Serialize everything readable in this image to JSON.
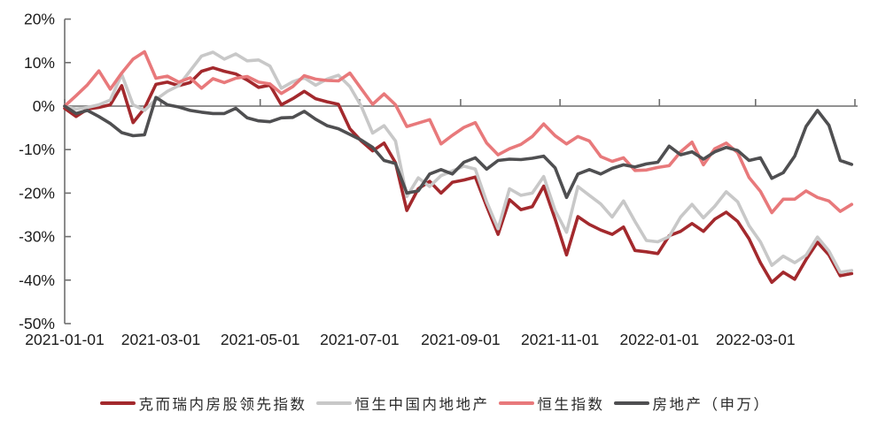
{
  "chart_data": {
    "type": "line",
    "title": "",
    "xlabel": "",
    "ylabel": "",
    "y_unit": "%",
    "ylim": [
      -50,
      20
    ],
    "grid": false,
    "legend_position": "bottom",
    "axis_color": "#6f6f6f",
    "text_color": "#1c1c1c",
    "y_ticks": [
      {
        "value": 20,
        "label": "20%"
      },
      {
        "value": 10,
        "label": "10%"
      },
      {
        "value": 0,
        "label": "0%"
      },
      {
        "value": -10,
        "label": "-10%"
      },
      {
        "value": -20,
        "label": "-20%"
      },
      {
        "value": -30,
        "label": "-30%"
      },
      {
        "value": -40,
        "label": "-40%"
      },
      {
        "value": -50,
        "label": "-50%"
      }
    ],
    "x_ticks": [
      {
        "label": "2021-01-01",
        "day": 0
      },
      {
        "label": "2021-03-01",
        "day": 59
      },
      {
        "label": "2021-05-01",
        "day": 120
      },
      {
        "label": "2021-07-01",
        "day": 181
      },
      {
        "label": "2021-09-01",
        "day": 243
      },
      {
        "label": "2021-11-01",
        "day": 304
      },
      {
        "label": "2022-01-01",
        "day": 365
      },
      {
        "label": "2022-03-01",
        "day": 424
      },
      {
        "label": "",
        "day": 485
      }
    ],
    "x": [
      "2021-01-01",
      "2021-01-08",
      "2021-01-15",
      "2021-01-22",
      "2021-01-29",
      "2021-02-05",
      "2021-02-12",
      "2021-02-19",
      "2021-02-26",
      "2021-03-05",
      "2021-03-12",
      "2021-03-19",
      "2021-03-26",
      "2021-04-02",
      "2021-04-09",
      "2021-04-16",
      "2021-04-23",
      "2021-04-30",
      "2021-05-07",
      "2021-05-14",
      "2021-05-21",
      "2021-05-28",
      "2021-06-04",
      "2021-06-11",
      "2021-06-18",
      "2021-06-25",
      "2021-07-02",
      "2021-07-09",
      "2021-07-16",
      "2021-07-23",
      "2021-07-30",
      "2021-08-06",
      "2021-08-13",
      "2021-08-20",
      "2021-08-27",
      "2021-09-03",
      "2021-09-10",
      "2021-09-17",
      "2021-09-24",
      "2021-10-01",
      "2021-10-08",
      "2021-10-15",
      "2021-10-22",
      "2021-10-29",
      "2021-11-05",
      "2021-11-12",
      "2021-11-19",
      "2021-11-26",
      "2021-12-03",
      "2021-12-10",
      "2021-12-17",
      "2021-12-24",
      "2021-12-31",
      "2022-01-07",
      "2022-01-14",
      "2022-01-21",
      "2022-01-28",
      "2022-02-04",
      "2022-02-11",
      "2022-02-18",
      "2022-02-25",
      "2022-03-04",
      "2022-03-11",
      "2022-03-18",
      "2022-03-25",
      "2022-04-01",
      "2022-04-08",
      "2022-04-15",
      "2022-04-22",
      "2022-04-29"
    ],
    "series": [
      {
        "name": "克而瑞内房股领先指数",
        "color": "#a3292d",
        "values": [
          -0.5,
          -2.4,
          -0.7,
          -0.3,
          0.3,
          4.7,
          -3.8,
          -0.5,
          5.0,
          5.5,
          4.7,
          5.4,
          8.0,
          8.8,
          8.0,
          7.4,
          6.0,
          4.3,
          4.8,
          0.3,
          1.7,
          3.4,
          1.7,
          1.0,
          0.4,
          -5.2,
          -8.0,
          -10.3,
          -8.5,
          -13.0,
          -24.0,
          -19.0,
          -17.3,
          -20.0,
          -17.5,
          -17.0,
          -16.3,
          -23.0,
          -29.5,
          -21.5,
          -23.8,
          -23.1,
          -18.4,
          -26.0,
          -34.2,
          -25.4,
          -27.2,
          -28.5,
          -29.5,
          -27.8,
          -33.2,
          -33.5,
          -33.9,
          -29.8,
          -28.8,
          -27.0,
          -28.8,
          -26.0,
          -24.4,
          -26.5,
          -30.5,
          -36.0,
          -40.5,
          -38.2,
          -39.8,
          -35.3,
          -31.3,
          -34.2,
          -39.0,
          -38.5
        ]
      },
      {
        "name": "恒生中国内地地产",
        "color": "#c8c8c8",
        "values": [
          0.0,
          -0.7,
          -0.3,
          0.3,
          1.4,
          7.3,
          0.3,
          -1.0,
          1.5,
          3.4,
          4.7,
          8.1,
          11.5,
          12.4,
          10.8,
          12.0,
          10.4,
          10.6,
          9.2,
          4.1,
          5.6,
          6.5,
          4.8,
          6.2,
          7.1,
          4.5,
          0.0,
          -6.2,
          -4.5,
          -8.0,
          -20.8,
          -16.5,
          -18.5,
          -16.0,
          -14.9,
          -13.8,
          -14.5,
          -22.0,
          -28.2,
          -19.0,
          -20.5,
          -20.0,
          -16.2,
          -24.0,
          -29.0,
          -18.5,
          -20.5,
          -22.5,
          -25.5,
          -21.8,
          -26.5,
          -30.9,
          -31.2,
          -30.0,
          -25.5,
          -22.6,
          -25.7,
          -23.0,
          -19.7,
          -22.0,
          -27.5,
          -31.2,
          -36.6,
          -34.5,
          -36.0,
          -34.3,
          -30.1,
          -33.3,
          -38.2,
          -37.8
        ]
      },
      {
        "name": "恒生指数",
        "color": "#e8797b",
        "values": [
          0.0,
          2.4,
          4.9,
          8.1,
          3.9,
          7.6,
          10.8,
          12.5,
          6.4,
          6.9,
          5.5,
          6.5,
          4.1,
          6.3,
          5.4,
          6.4,
          6.8,
          5.5,
          5.1,
          2.9,
          4.5,
          7.0,
          6.2,
          5.9,
          5.8,
          7.6,
          4.0,
          0.4,
          2.8,
          0.3,
          -4.7,
          -3.9,
          -3.1,
          -8.7,
          -6.7,
          -4.9,
          -3.8,
          -8.5,
          -11.2,
          -9.8,
          -8.8,
          -7.0,
          -4.1,
          -6.8,
          -8.7,
          -7.0,
          -8.0,
          -11.6,
          -12.7,
          -11.9,
          -14.8,
          -14.7,
          -14.1,
          -13.7,
          -10.5,
          -8.3,
          -13.5,
          -9.8,
          -8.5,
          -10.7,
          -16.4,
          -19.6,
          -24.5,
          -21.4,
          -21.4,
          -19.5,
          -21.0,
          -21.8,
          -24.2,
          -22.6
        ]
      },
      {
        "name": "房地产（申万）",
        "color": "#4f4f51",
        "values": [
          0.0,
          -1.7,
          -1.0,
          -2.4,
          -4.0,
          -6.1,
          -6.8,
          -6.6,
          2.0,
          0.3,
          -0.2,
          -1.0,
          -1.4,
          -1.7,
          -1.7,
          -0.5,
          -2.7,
          -3.4,
          -3.6,
          -2.7,
          -2.6,
          -1.2,
          -3.0,
          -4.5,
          -5.2,
          -6.5,
          -7.8,
          -9.5,
          -12.5,
          -13.2,
          -20.0,
          -19.5,
          -15.6,
          -14.6,
          -15.6,
          -12.9,
          -11.9,
          -14.5,
          -12.5,
          -12.2,
          -12.3,
          -12.0,
          -11.5,
          -14.2,
          -21.0,
          -15.6,
          -14.6,
          -15.6,
          -14.3,
          -13.5,
          -14.0,
          -13.3,
          -12.9,
          -9.2,
          -11.2,
          -10.5,
          -12.2,
          -10.5,
          -9.5,
          -10.2,
          -12.5,
          -11.9,
          -16.6,
          -15.3,
          -11.5,
          -4.7,
          -1.0,
          -4.4,
          -12.5,
          -13.4
        ]
      }
    ]
  }
}
